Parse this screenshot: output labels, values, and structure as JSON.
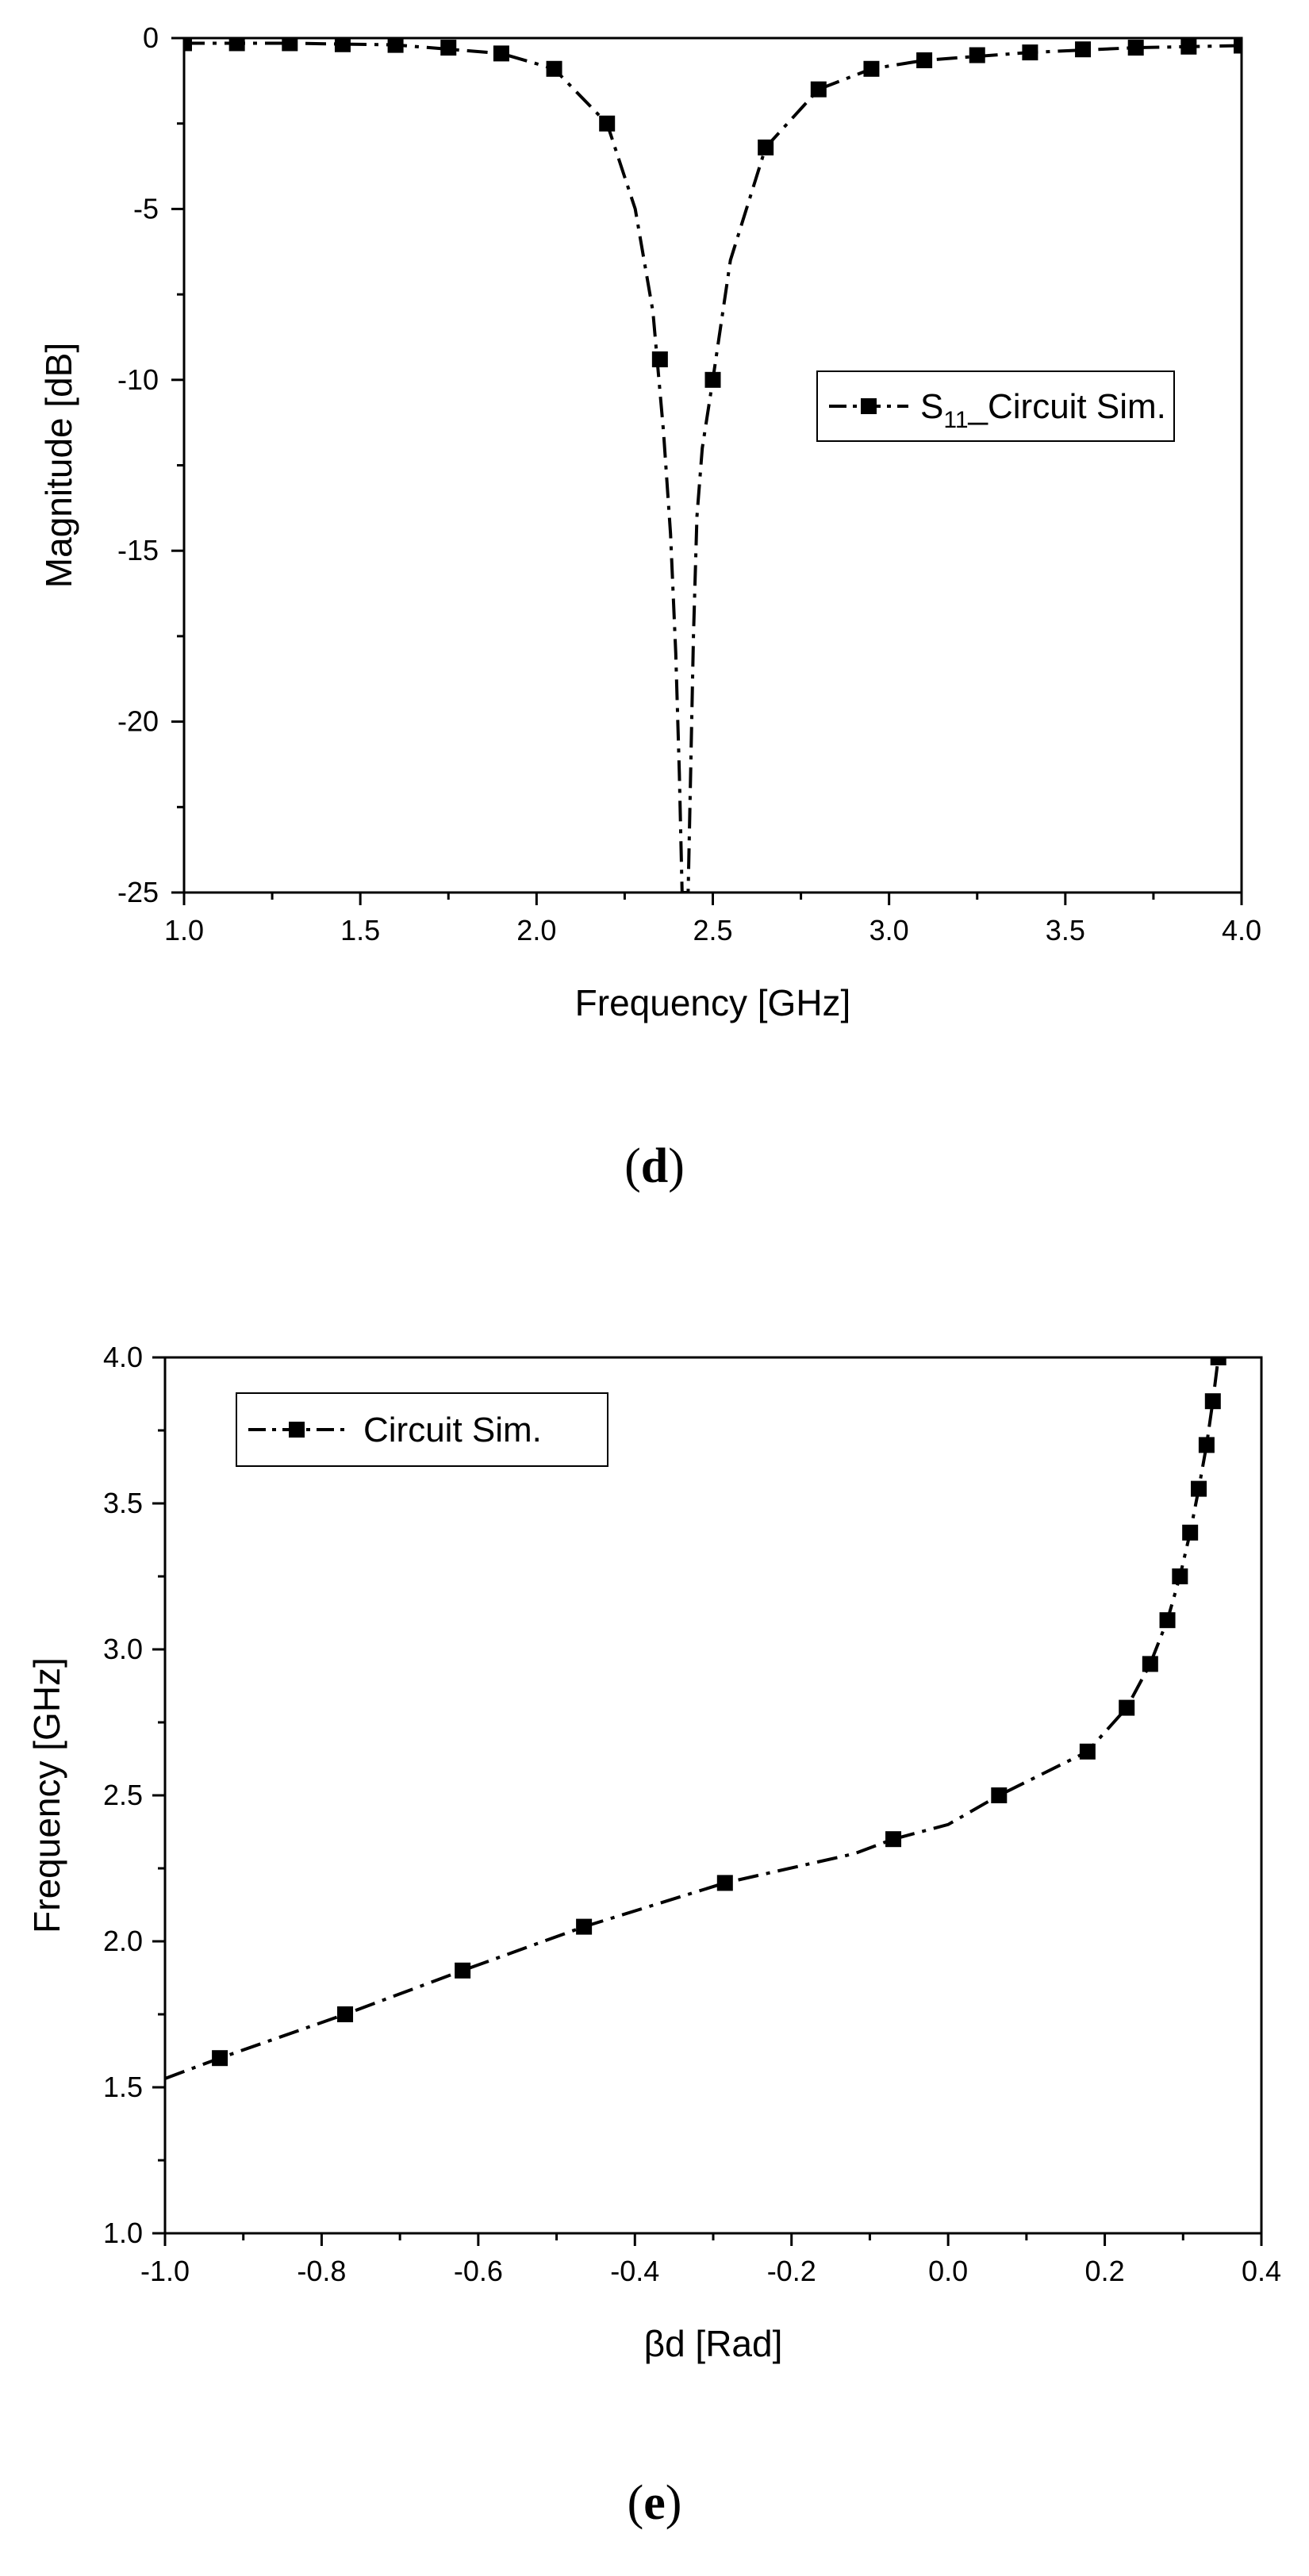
{
  "chart_data": [
    {
      "type": "line",
      "panel_label": {
        "open": "(",
        "letter": "d",
        "close": ")"
      },
      "xlabel": "Frequency [GHz]",
      "ylabel": "Magnitude [dB]",
      "xlim": [
        1.0,
        4.0
      ],
      "ylim": [
        -25,
        0
      ],
      "xticks": [
        1.0,
        1.5,
        2.0,
        2.5,
        3.0,
        3.5,
        4.0
      ],
      "xtick_labels": [
        "1.0",
        "1.5",
        "2.0",
        "2.5",
        "3.0",
        "3.5",
        "4.0"
      ],
      "yticks": [
        0,
        -5,
        -10,
        -15,
        -20,
        -25
      ],
      "ytick_labels": [
        "0",
        "-5",
        "-10",
        "-15",
        "-20",
        "-25"
      ],
      "legend_position": "middle-right",
      "legend": {
        "main": "S",
        "sub": "11",
        "rest": "_Circuit Sim."
      },
      "series": [
        {
          "name": "S11_Circuit Sim.",
          "markers": {
            "x": [
              1.0,
              1.15,
              1.3,
              1.45,
              1.6,
              1.75,
              1.9,
              2.05,
              2.2,
              2.35,
              2.5,
              2.65,
              2.8,
              2.95,
              3.1,
              3.25,
              3.4,
              3.55,
              3.7,
              3.85,
              4.0
            ],
            "y": [
              -0.15,
              -0.15,
              -0.15,
              -0.18,
              -0.2,
              -0.28,
              -0.45,
              -0.9,
              -2.5,
              -9.4,
              -10.0,
              -3.2,
              -1.5,
              -0.9,
              -0.65,
              -0.5,
              -0.42,
              -0.33,
              -0.28,
              -0.25,
              -0.22
            ]
          },
          "curve": {
            "x": [
              1.0,
              1.3,
              1.6,
              1.9,
              2.05,
              2.2,
              2.28,
              2.33,
              2.36,
              2.38,
              2.395,
              2.405,
              2.413,
              2.42,
              2.43,
              2.438,
              2.445,
              2.455,
              2.47,
              2.5,
              2.55,
              2.65,
              2.8,
              2.95,
              3.1,
              3.4,
              3.7,
              4.0
            ],
            "y": [
              -0.15,
              -0.15,
              -0.2,
              -0.45,
              -0.9,
              -2.5,
              -5.0,
              -8.0,
              -11.5,
              -14.5,
              -18.0,
              -21.5,
              -25.0,
              -25.0,
              -25.0,
              -21.0,
              -17.5,
              -14.0,
              -12.0,
              -10.0,
              -6.5,
              -3.2,
              -1.5,
              -0.9,
              -0.65,
              -0.42,
              -0.28,
              -0.22
            ]
          }
        }
      ]
    },
    {
      "type": "line",
      "panel_label": {
        "open": "(",
        "letter": "e",
        "close": ")"
      },
      "xlabel": "βd [Rad]",
      "ylabel": "Frequency [GHz]",
      "xlim": [
        -1.0,
        0.4
      ],
      "ylim": [
        1.0,
        4.0
      ],
      "xticks": [
        -1.0,
        -0.8,
        -0.6,
        -0.4,
        -0.2,
        0.0,
        0.2,
        0.4
      ],
      "xtick_labels": [
        "-1.0",
        "-0.8",
        "-0.6",
        "-0.4",
        "-0.2",
        "0.0",
        "0.2",
        "0.4"
      ],
      "yticks": [
        1.0,
        1.5,
        2.0,
        2.5,
        3.0,
        3.5,
        4.0
      ],
      "ytick_labels": [
        "1.0",
        "1.5",
        "2.0",
        "2.5",
        "3.0",
        "3.5",
        "4.0"
      ],
      "legend_position": "top-left",
      "legend": {
        "main": "Circuit Sim.",
        "sub": "",
        "rest": ""
      },
      "series": [
        {
          "name": "Circuit Sim.",
          "markers": {
            "x": [
              -0.93,
              -0.77,
              -0.62,
              -0.465,
              -0.285,
              -0.07,
              0.065,
              0.178,
              0.228,
              0.258,
              0.28,
              0.296,
              0.309,
              0.32,
              0.33,
              0.338,
              0.345
            ],
            "y": [
              1.6,
              1.75,
              1.9,
              2.05,
              2.2,
              2.35,
              2.5,
              2.65,
              2.8,
              2.95,
              3.1,
              3.25,
              3.4,
              3.55,
              3.7,
              3.85,
              4.0
            ]
          },
          "curve": {
            "x": [
              -1.0,
              -0.93,
              -0.77,
              -0.62,
              -0.465,
              -0.285,
              -0.12,
              -0.07,
              0.0,
              0.065,
              0.178,
              0.228,
              0.258,
              0.28,
              0.296,
              0.309,
              0.32,
              0.33,
              0.338,
              0.345
            ],
            "y": [
              1.53,
              1.6,
              1.75,
              1.9,
              2.05,
              2.2,
              2.3,
              2.35,
              2.4,
              2.5,
              2.65,
              2.8,
              2.95,
              3.1,
              3.25,
              3.4,
              3.55,
              3.7,
              3.85,
              4.0
            ]
          }
        }
      ]
    }
  ]
}
